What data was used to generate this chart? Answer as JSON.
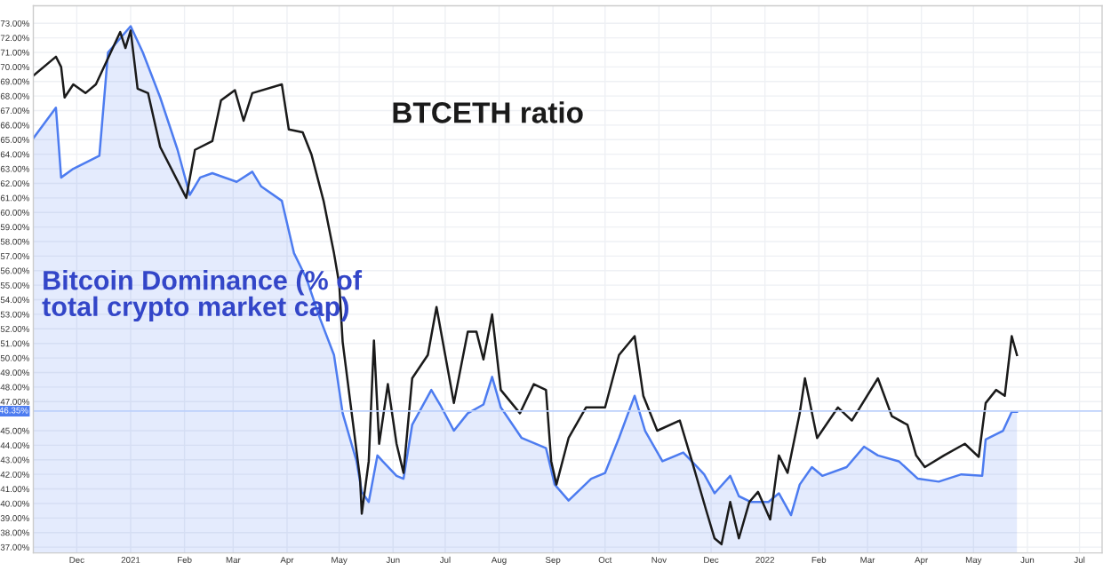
{
  "chart_data": {
    "type": "line",
    "xlim": [
      "2020-11-06",
      "2022-07-14"
    ],
    "ylim": [
      36.6,
      74.2
    ],
    "xticks": [
      {
        "value": "2020-12-01",
        "label": "Dec"
      },
      {
        "value": "2021-01-01",
        "label": "2021"
      },
      {
        "value": "2021-02-01",
        "label": "Feb"
      },
      {
        "value": "2021-03-01",
        "label": "Mar"
      },
      {
        "value": "2021-04-01",
        "label": "Apr"
      },
      {
        "value": "2021-05-01",
        "label": "May"
      },
      {
        "value": "2021-06-01",
        "label": "Jun"
      },
      {
        "value": "2021-07-01",
        "label": "Jul"
      },
      {
        "value": "2021-08-01",
        "label": "Aug"
      },
      {
        "value": "2021-09-01",
        "label": "Sep"
      },
      {
        "value": "2021-10-01",
        "label": "Oct"
      },
      {
        "value": "2021-11-01",
        "label": "Nov"
      },
      {
        "value": "2021-12-01",
        "label": "Dec"
      },
      {
        "value": "2022-01-01",
        "label": "2022"
      },
      {
        "value": "2022-02-01",
        "label": "Feb"
      },
      {
        "value": "2022-03-01",
        "label": "Mar"
      },
      {
        "value": "2022-04-01",
        "label": "Apr"
      },
      {
        "value": "2022-05-01",
        "label": "May"
      },
      {
        "value": "2022-06-01",
        "label": "Jun"
      },
      {
        "value": "2022-07-01",
        "label": "Jul"
      }
    ],
    "yticks": [
      {
        "value": 37,
        "label": "37.00%"
      },
      {
        "value": 38,
        "label": "38.00%"
      },
      {
        "value": 39,
        "label": "39.00%"
      },
      {
        "value": 40,
        "label": "40.00%"
      },
      {
        "value": 41,
        "label": "41.00%"
      },
      {
        "value": 42,
        "label": "42.00%"
      },
      {
        "value": 43,
        "label": "43.00%"
      },
      {
        "value": 44,
        "label": "44.00%"
      },
      {
        "value": 45,
        "label": "45.00%"
      },
      {
        "value": 47,
        "label": "47.00%"
      },
      {
        "value": 48,
        "label": "48.00%"
      },
      {
        "value": 49,
        "label": "49.00%"
      },
      {
        "value": 50,
        "label": "50.00%"
      },
      {
        "value": 51,
        "label": "51.00%"
      },
      {
        "value": 52,
        "label": "52.00%"
      },
      {
        "value": 53,
        "label": "53.00%"
      },
      {
        "value": 54,
        "label": "54.00%"
      },
      {
        "value": 55,
        "label": "55.00%"
      },
      {
        "value": 56,
        "label": "56.00%"
      },
      {
        "value": 57,
        "label": "57.00%"
      },
      {
        "value": 58,
        "label": "58.00%"
      },
      {
        "value": 59,
        "label": "59.00%"
      },
      {
        "value": 60,
        "label": "60.00%"
      },
      {
        "value": 61,
        "label": "61.00%"
      },
      {
        "value": 62,
        "label": "62.00%"
      },
      {
        "value": 63,
        "label": "63.00%"
      },
      {
        "value": 64,
        "label": "64.00%"
      },
      {
        "value": 65,
        "label": "65.00%"
      },
      {
        "value": 66,
        "label": "66.00%"
      },
      {
        "value": 67,
        "label": "67.00%"
      },
      {
        "value": 68,
        "label": "68.00%"
      },
      {
        "value": 69,
        "label": "69.00%"
      },
      {
        "value": 70,
        "label": "70.00%"
      },
      {
        "value": 71,
        "label": "71.00%"
      },
      {
        "value": 72,
        "label": "72.00%"
      },
      {
        "value": 73,
        "label": "73.00%"
      }
    ],
    "grid": true,
    "legend": false,
    "ref_lines": [
      {
        "axis": "y",
        "value": 46.35,
        "label": "46.35%",
        "color": "#bcd0fb"
      }
    ],
    "series": [
      {
        "name": "Bitcoin Dominance (% of\ntotal crypto market cap)",
        "type": "area",
        "color": "#4d7cf0",
        "x": [
          "2020-11-06",
          "2020-11-19",
          "2020-11-22",
          "2020-11-29",
          "2020-12-14",
          "2020-12-19",
          "2021-01-01",
          "2021-01-08",
          "2021-01-18",
          "2021-01-28",
          "2021-02-04",
          "2021-02-10",
          "2021-02-17",
          "2021-03-03",
          "2021-03-12",
          "2021-03-17",
          "2021-03-29",
          "2021-04-05",
          "2021-04-12",
          "2021-04-20",
          "2021-04-28",
          "2021-05-03",
          "2021-05-11",
          "2021-05-14",
          "2021-05-18",
          "2021-05-23",
          "2021-05-26",
          "2021-06-03",
          "2021-06-07",
          "2021-06-12",
          "2021-06-23",
          "2021-06-28",
          "2021-07-06",
          "2021-07-14",
          "2021-07-23",
          "2021-07-28",
          "2021-08-02",
          "2021-08-14",
          "2021-08-28",
          "2021-09-02",
          "2021-09-10",
          "2021-09-23",
          "2021-10-01",
          "2021-10-09",
          "2021-10-18",
          "2021-10-24",
          "2021-11-03",
          "2021-11-15",
          "2021-11-23",
          "2021-11-27",
          "2021-12-03",
          "2021-12-12",
          "2021-12-17",
          "2021-12-24",
          "2022-01-03",
          "2022-01-09",
          "2022-01-16",
          "2022-01-21",
          "2022-01-28",
          "2022-02-03",
          "2022-02-17",
          "2022-02-27",
          "2022-03-07",
          "2022-03-19",
          "2022-03-30",
          "2022-04-11",
          "2022-04-24",
          "2022-05-06",
          "2022-05-08",
          "2022-05-18",
          "2022-05-23",
          "2022-05-26"
        ],
        "values": [
          65.1,
          67.2,
          62.4,
          63.0,
          63.9,
          71.0,
          72.8,
          71.0,
          67.9,
          64.3,
          61.2,
          62.4,
          62.7,
          62.1,
          62.8,
          61.8,
          60.8,
          57.2,
          55.5,
          52.7,
          50.2,
          46.2,
          42.9,
          40.8,
          40.1,
          43.3,
          42.9,
          41.9,
          41.7,
          45.4,
          47.8,
          46.8,
          45.0,
          46.2,
          46.8,
          48.7,
          46.6,
          44.5,
          43.8,
          41.3,
          40.2,
          41.7,
          42.1,
          44.5,
          47.4,
          45.0,
          42.9,
          43.5,
          42.5,
          42.0,
          40.7,
          41.9,
          40.5,
          40.1,
          40.1,
          40.7,
          39.2,
          41.3,
          42.5,
          41.9,
          42.5,
          43.9,
          43.3,
          42.9,
          41.7,
          41.5,
          42.0,
          41.9,
          44.4,
          45.0,
          46.3,
          46.3
        ]
      },
      {
        "name": "BTCETH ratio",
        "color": "#1a1a1a",
        "x": [
          "2020-11-06",
          "2020-11-19",
          "2020-11-22",
          "2020-11-24",
          "2020-11-29",
          "2020-12-06",
          "2020-12-12",
          "2020-12-19",
          "2020-12-26",
          "2020-12-29",
          "2021-01-01",
          "2021-01-05",
          "2021-01-11",
          "2021-01-18",
          "2021-02-02",
          "2021-02-07",
          "2021-02-17",
          "2021-02-22",
          "2021-03-02",
          "2021-03-07",
          "2021-03-12",
          "2021-03-29",
          "2021-04-02",
          "2021-04-10",
          "2021-04-15",
          "2021-04-22",
          "2021-04-28",
          "2021-05-01",
          "2021-05-03",
          "2021-05-13",
          "2021-05-14",
          "2021-05-18",
          "2021-05-21",
          "2021-05-24",
          "2021-05-29",
          "2021-06-03",
          "2021-06-07",
          "2021-06-12",
          "2021-06-21",
          "2021-06-26",
          "2021-07-01",
          "2021-07-06",
          "2021-07-14",
          "2021-07-19",
          "2021-07-23",
          "2021-07-28",
          "2021-08-02",
          "2021-08-13",
          "2021-08-21",
          "2021-08-28",
          "2021-08-31",
          "2021-09-03",
          "2021-09-10",
          "2021-09-20",
          "2021-10-01",
          "2021-10-09",
          "2021-10-18",
          "2021-10-23",
          "2021-10-31",
          "2021-11-13",
          "2021-11-20",
          "2021-11-28",
          "2021-12-03",
          "2021-12-07",
          "2021-12-12",
          "2021-12-17",
          "2021-12-23",
          "2021-12-28",
          "2022-01-04",
          "2022-01-09",
          "2022-01-14",
          "2022-01-21",
          "2022-01-24",
          "2022-01-31",
          "2022-02-12",
          "2022-02-20",
          "2022-03-07",
          "2022-03-15",
          "2022-03-24",
          "2022-03-29",
          "2022-04-03",
          "2022-04-14",
          "2022-04-26",
          "2022-05-04",
          "2022-05-08",
          "2022-05-14",
          "2022-05-19",
          "2022-05-23",
          "2022-05-26"
        ],
        "values": [
          69.4,
          70.7,
          70.0,
          67.9,
          68.8,
          68.2,
          68.8,
          70.6,
          72.4,
          71.3,
          72.5,
          68.5,
          68.2,
          64.5,
          61.0,
          64.3,
          64.9,
          67.7,
          68.4,
          66.3,
          68.2,
          68.8,
          65.7,
          65.5,
          64.0,
          60.8,
          57.2,
          55.1,
          51.1,
          41.7,
          39.3,
          42.9,
          51.2,
          44.1,
          48.2,
          44.1,
          42.1,
          48.6,
          50.2,
          53.5,
          50.2,
          46.9,
          51.8,
          51.8,
          49.9,
          53.0,
          47.8,
          46.2,
          48.2,
          47.8,
          42.9,
          41.3,
          44.5,
          46.6,
          46.6,
          50.2,
          51.5,
          47.4,
          45.0,
          45.7,
          42.9,
          39.6,
          37.6,
          37.2,
          40.1,
          37.6,
          40.1,
          40.8,
          38.9,
          43.3,
          42.1,
          46.2,
          48.6,
          44.5,
          46.6,
          45.7,
          48.6,
          46.0,
          45.4,
          43.3,
          42.5,
          43.3,
          44.1,
          43.2,
          46.9,
          47.8,
          47.4,
          51.5,
          50.2
        ]
      }
    ]
  }
}
